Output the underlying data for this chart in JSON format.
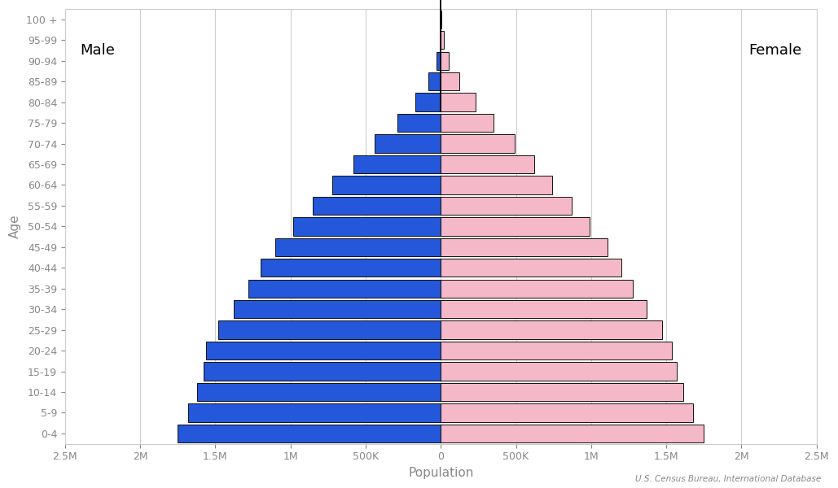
{
  "age_groups": [
    "0-4",
    "5-9",
    "10-14",
    "15-19",
    "20-24",
    "25-29",
    "30-34",
    "35-39",
    "40-44",
    "45-49",
    "50-54",
    "55-59",
    "60-64",
    "65-69",
    "70-74",
    "75-79",
    "80-84",
    "85-89",
    "90-94",
    "95-99",
    "100 +"
  ],
  "male": [
    1750000,
    1680000,
    1620000,
    1580000,
    1560000,
    1480000,
    1380000,
    1280000,
    1200000,
    1100000,
    980000,
    850000,
    720000,
    580000,
    440000,
    290000,
    170000,
    80000,
    30000,
    8000,
    1500
  ],
  "female": [
    1750000,
    1680000,
    1615000,
    1570000,
    1540000,
    1470000,
    1370000,
    1275000,
    1200000,
    1110000,
    990000,
    870000,
    740000,
    620000,
    490000,
    350000,
    230000,
    125000,
    55000,
    18000,
    4500
  ],
  "male_color": "#2457D9",
  "female_color": "#F4B8C8",
  "male_edgecolor": "#111111",
  "female_edgecolor": "#111111",
  "bar_linewidth": 0.7,
  "xlabel": "Population",
  "ylabel": "Age",
  "background_color": "#ffffff",
  "male_label": "Male",
  "female_label": "Female",
  "source_text": "U.S. Census Bureau, International Database",
  "grid_color": "#d0d0d0",
  "tick_color": "#888888",
  "axis_label_color": "#888888",
  "spine_color": "#cccccc",
  "xlim_val": 2500000,
  "xtick_vals": [
    -2500000,
    -2000000,
    -1500000,
    -1000000,
    -500000,
    0,
    500000,
    1000000,
    1500000,
    2000000,
    2500000
  ],
  "xtick_labels": [
    "2.5M",
    "2M",
    "1.5M",
    "1M",
    "500K",
    "0",
    "500K",
    "1M",
    "1.5M",
    "2M",
    "2.5M"
  ]
}
